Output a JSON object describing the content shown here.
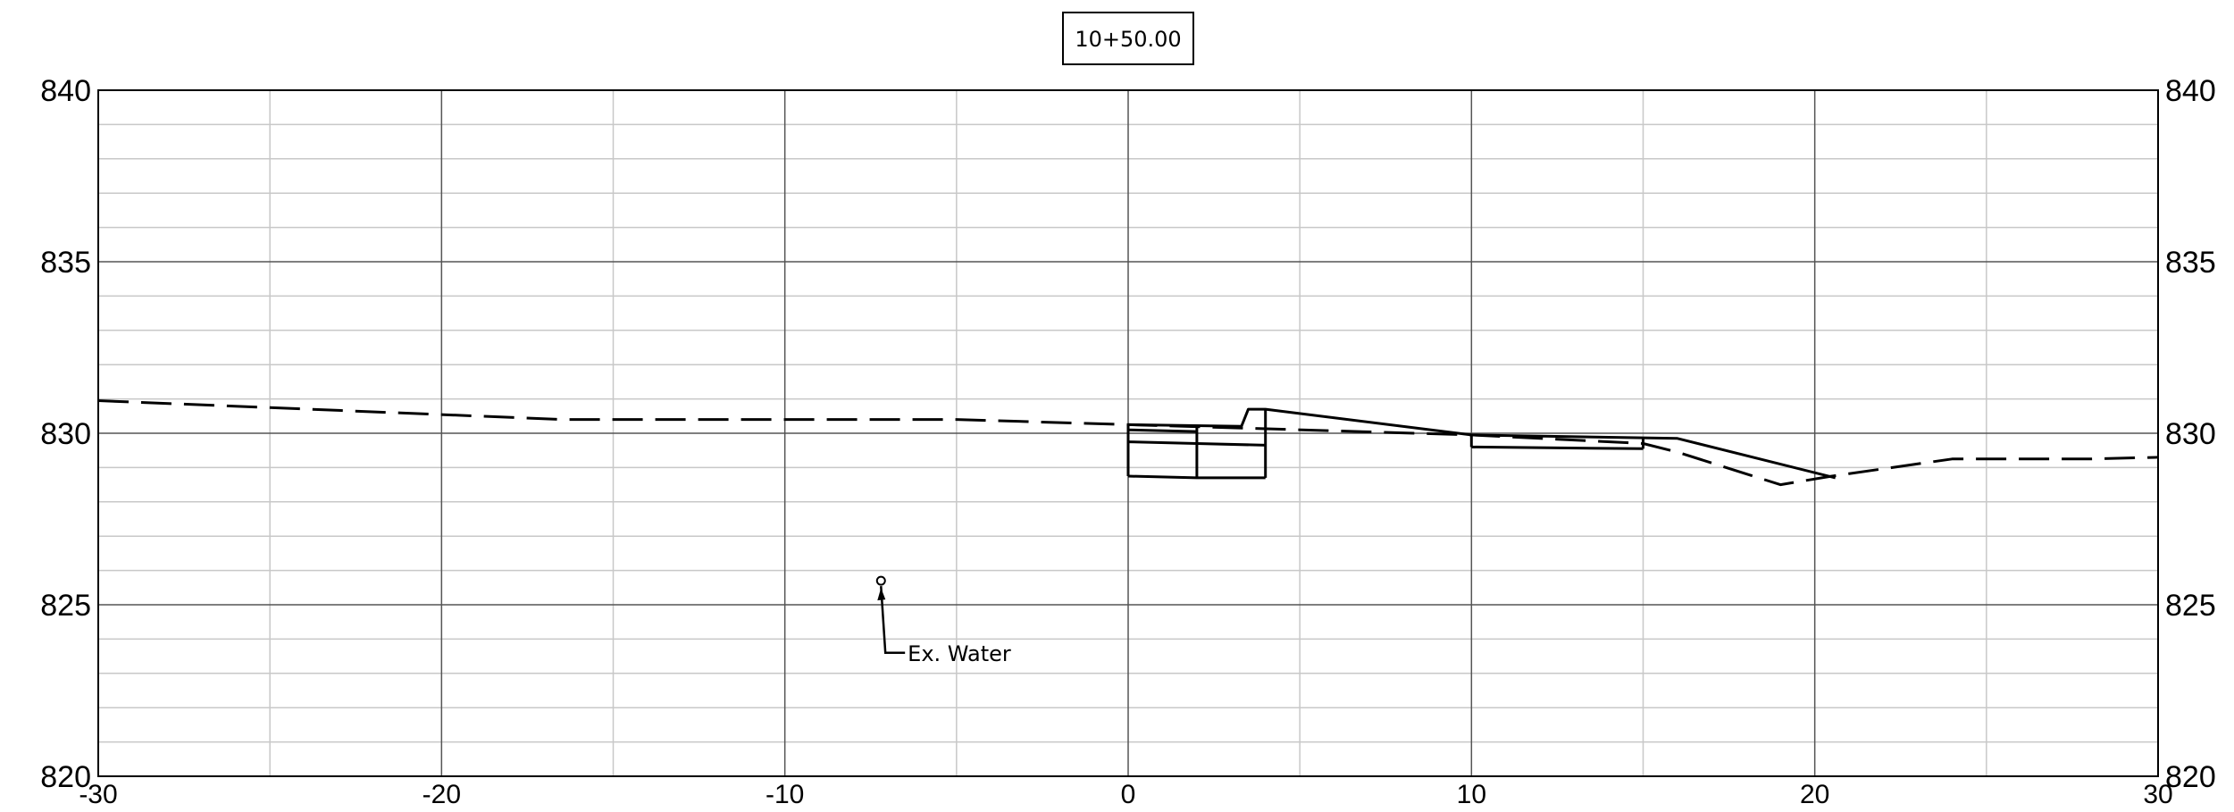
{
  "chart_data": {
    "type": "line",
    "title": "10+50.00",
    "xlabel": "",
    "ylabel": "",
    "xlim": [
      -30,
      30
    ],
    "ylim": [
      820,
      840
    ],
    "x_ticks": [
      "-30",
      "-20",
      "-10",
      "0",
      "10",
      "20",
      "30"
    ],
    "y_ticks": [
      "820",
      "825",
      "830",
      "835",
      "840"
    ],
    "grid": true,
    "series": [
      {
        "style": "dashed",
        "points": [
          [
            -30,
            830.95
          ],
          [
            -16.5,
            830.4
          ],
          [
            -5,
            830.4
          ],
          [
            0,
            830.25
          ],
          [
            10,
            829.95
          ],
          [
            15,
            829.7
          ],
          [
            16,
            829.45
          ],
          [
            19,
            828.5
          ],
          [
            20.5,
            828.75
          ],
          [
            24,
            829.25
          ],
          [
            28,
            829.25
          ],
          [
            30,
            829.3
          ]
        ]
      },
      {
        "style": "solid",
        "points": [
          [
            0,
            830.25
          ],
          [
            3.3,
            830.2
          ],
          [
            3.5,
            830.7
          ],
          [
            4,
            830.7
          ],
          [
            10,
            829.95
          ],
          [
            16,
            829.85
          ],
          [
            20.6,
            828.7
          ]
        ]
      },
      {
        "style": "solid",
        "points": [
          [
            0,
            830.1
          ],
          [
            2,
            830.05
          ]
        ]
      },
      {
        "style": "solid",
        "points": [
          [
            0,
            829.75
          ],
          [
            2,
            829.7
          ],
          [
            4,
            829.65
          ]
        ]
      },
      {
        "style": "solid",
        "points": [
          [
            0,
            828.75
          ],
          [
            2,
            828.7
          ],
          [
            4,
            828.7
          ]
        ]
      },
      {
        "style": "solid",
        "points": [
          [
            10,
            829.6
          ],
          [
            15,
            829.55
          ]
        ]
      },
      {
        "style": "solid",
        "points": [
          [
            0,
            830.25
          ],
          [
            0,
            828.75
          ]
        ]
      },
      {
        "style": "solid",
        "points": [
          [
            2,
            830.2
          ],
          [
            2,
            828.7
          ]
        ]
      },
      {
        "style": "solid",
        "points": [
          [
            4,
            830.7
          ],
          [
            4,
            828.7
          ]
        ]
      },
      {
        "style": "solid",
        "points": [
          [
            10,
            829.95
          ],
          [
            10,
            829.6
          ]
        ]
      },
      {
        "style": "solid",
        "points": [
          [
            15,
            829.85
          ],
          [
            15,
            829.55
          ]
        ]
      }
    ],
    "annotations": [
      {
        "text": "Ex. Water",
        "x": -7.2,
        "y": 825.7,
        "label_x": -6.5,
        "label_y": 823.6
      }
    ]
  }
}
